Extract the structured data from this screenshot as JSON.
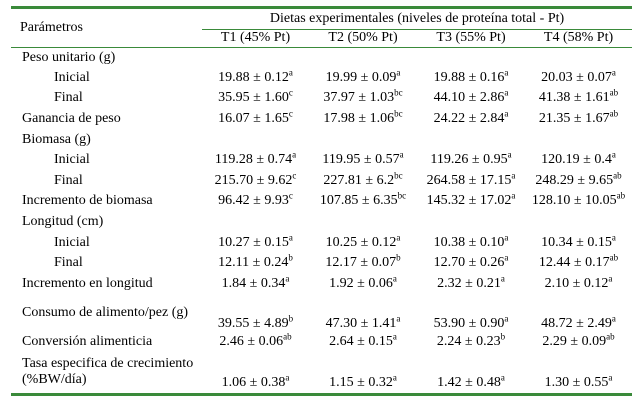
{
  "header": {
    "param_label": "Parámetros",
    "group_label": "Dietas experimentales (niveles de proteína total - Pt)",
    "treatments": [
      "T1 (45% Pt)",
      "T2 (50% Pt)",
      "T3 (55% Pt)",
      "T4 (58% Pt)"
    ]
  },
  "rows": [
    {
      "label": "Peso unitario (g)",
      "indent": false,
      "values": []
    },
    {
      "label": "Inicial",
      "indent": true,
      "values": [
        {
          "v": "19.88 ± 0.12",
          "s": "a"
        },
        {
          "v": "19.99 ± 0.09",
          "s": "a"
        },
        {
          "v": "19.88 ± 0.16",
          "s": "a"
        },
        {
          "v": "20.03 ± 0.07",
          "s": "a"
        }
      ]
    },
    {
      "label": "Final",
      "indent": true,
      "values": [
        {
          "v": "35.95 ± 1.60",
          "s": "c"
        },
        {
          "v": "37.97 ± 1.03",
          "s": "bc"
        },
        {
          "v": "44.10 ± 2.86",
          "s": "a"
        },
        {
          "v": "41.38 ± 1.61",
          "s": "ab"
        }
      ]
    },
    {
      "label": "Ganancia de peso",
      "indent": false,
      "values": [
        {
          "v": "16.07 ± 1.65",
          "s": "c"
        },
        {
          "v": "17.98 ± 1.06",
          "s": "bc"
        },
        {
          "v": "24.22 ± 2.84",
          "s": "a"
        },
        {
          "v": "21.35 ± 1.67",
          "s": "ab"
        }
      ]
    },
    {
      "label": "Biomasa (g)",
      "indent": false,
      "values": []
    },
    {
      "label": "Inicial",
      "indent": true,
      "values": [
        {
          "v": "119.28 ± 0.74",
          "s": "a"
        },
        {
          "v": "119.95 ± 0.57",
          "s": "a"
        },
        {
          "v": "119.26 ± 0.95",
          "s": "a"
        },
        {
          "v": "120.19 ± 0.4",
          "s": "a"
        }
      ]
    },
    {
      "label": "Final",
      "indent": true,
      "values": [
        {
          "v": "215.70 ± 9.62",
          "s": "c"
        },
        {
          "v": "227.81 ± 6.2",
          "s": "bc"
        },
        {
          "v": "264.58 ± 17.15",
          "s": "a"
        },
        {
          "v": "248.29 ± 9.65",
          "s": "ab"
        }
      ]
    },
    {
      "label": "Incremento de biomasa",
      "indent": false,
      "values": [
        {
          "v": "96.42 ± 9.93",
          "s": "c"
        },
        {
          "v": "107.85 ± 6.35",
          "s": "bc"
        },
        {
          "v": "145.32 ± 17.02",
          "s": "a"
        },
        {
          "v": "128.10 ± 10.05",
          "s": "ab"
        }
      ]
    },
    {
      "label": "Longitud (cm)",
      "indent": false,
      "values": []
    },
    {
      "label": "Inicial",
      "indent": true,
      "values": [
        {
          "v": "10.27 ± 0.15",
          "s": "a"
        },
        {
          "v": "10.25 ± 0.12",
          "s": "a"
        },
        {
          "v": "10.38 ± 0.10",
          "s": "a"
        },
        {
          "v": "10.34 ± 0.15",
          "s": "a"
        }
      ]
    },
    {
      "label": "Final",
      "indent": true,
      "values": [
        {
          "v": "12.11 ± 0.24",
          "s": "b"
        },
        {
          "v": "12.17 ± 0.07",
          "s": "b"
        },
        {
          "v": "12.70 ± 0.26",
          "s": "a"
        },
        {
          "v": "12.44 ± 0.17",
          "s": "ab"
        }
      ]
    },
    {
      "label": "Incremento en longitud",
      "indent": false,
      "values": [
        {
          "v": "1.84 ± 0.34",
          "s": "a"
        },
        {
          "v": "1.92 ± 0.06",
          "s": "a"
        },
        {
          "v": "2.32 ± 0.21",
          "s": "a"
        },
        {
          "v": "2.10 ± 0.12",
          "s": "a"
        }
      ]
    },
    {
      "label": "Consumo de alimento/pez (g)",
      "indent": false,
      "tall": true,
      "values": [
        {
          "v": "39.55 ± 4.89",
          "s": "b"
        },
        {
          "v": "47.30 ± 1.41",
          "s": "a"
        },
        {
          "v": "53.90 ± 0.90",
          "s": "a"
        },
        {
          "v": "48.72 ± 2.49",
          "s": "a"
        }
      ]
    },
    {
      "label": "Conversión alimenticia",
      "indent": false,
      "values": [
        {
          "v": "2.46 ± 0.06",
          "s": "ab"
        },
        {
          "v": "2.64 ± 0.15",
          "s": "a"
        },
        {
          "v": "2.24 ± 0.23",
          "s": "b"
        },
        {
          "v": "2.29 ± 0.09",
          "s": "ab"
        }
      ]
    },
    {
      "label": "Tasa especifica de crecimiento (%BW/día)",
      "indent": false,
      "tall": true,
      "values": [
        {
          "v": "1.06 ± 0.38",
          "s": "a"
        },
        {
          "v": "1.15 ± 0.32",
          "s": "a"
        },
        {
          "v": "1.42 ± 0.48",
          "s": "a"
        },
        {
          "v": "1.30 ± 0.55",
          "s": "a"
        }
      ]
    }
  ],
  "colors": {
    "rule": "#3a8a3a",
    "text": "#000000"
  }
}
